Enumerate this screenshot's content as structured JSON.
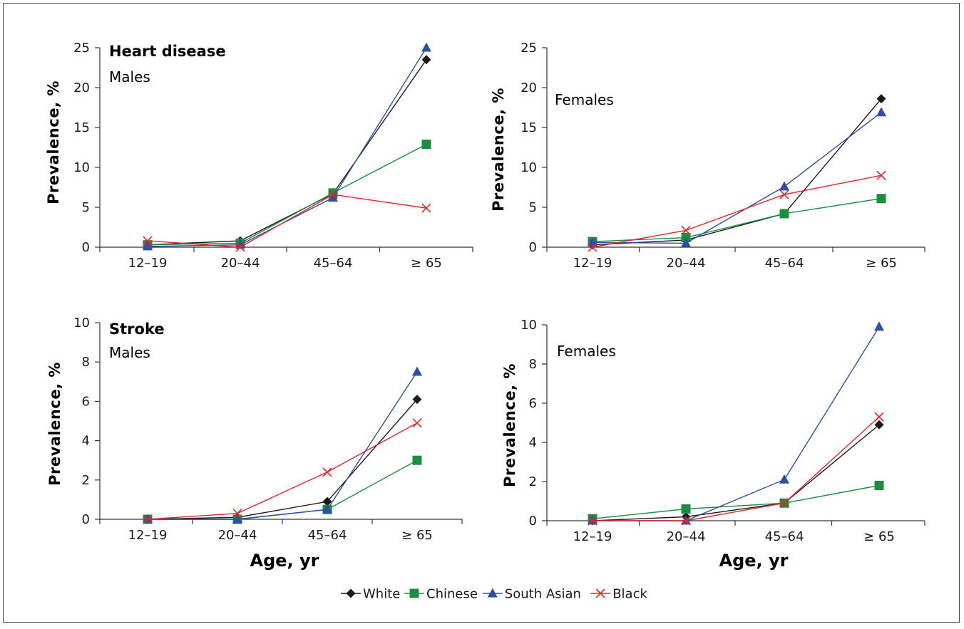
{
  "chart_data": [
    {
      "type": "line",
      "title": "Heart disease",
      "subtitle": "Males",
      "ylabel": "Prevalence, %",
      "xlabel": "",
      "categories": [
        "12–19",
        "20–44",
        "45–64",
        "≥ 65"
      ],
      "ylim": [
        0,
        25
      ],
      "yticks": [
        0,
        5,
        10,
        15,
        20,
        25
      ],
      "series": [
        {
          "name": "White",
          "values": [
            0.3,
            0.8,
            6.7,
            23.5
          ]
        },
        {
          "name": "Chinese",
          "values": [
            0.3,
            0.5,
            6.8,
            12.9
          ]
        },
        {
          "name": "South Asian",
          "values": [
            0.1,
            0.3,
            6.2,
            25.0
          ]
        },
        {
          "name": "Black",
          "values": [
            0.8,
            0.0,
            6.6,
            4.9
          ]
        }
      ]
    },
    {
      "type": "line",
      "title": "",
      "subtitle": "Females",
      "ylabel": "Prevalence, %",
      "xlabel": "",
      "categories": [
        "12–19",
        "20–44",
        "45–64",
        "≥ 65"
      ],
      "ylim": [
        0,
        25
      ],
      "yticks": [
        0,
        5,
        10,
        15,
        20,
        25
      ],
      "series": [
        {
          "name": "White",
          "values": [
            0.3,
            0.9,
            4.2,
            18.6
          ]
        },
        {
          "name": "Chinese",
          "values": [
            0.7,
            1.2,
            4.2,
            6.1
          ]
        },
        {
          "name": "South Asian",
          "values": [
            0.6,
            0.5,
            7.6,
            16.9
          ]
        },
        {
          "name": "Black",
          "values": [
            0.0,
            2.1,
            6.6,
            9.0
          ]
        }
      ]
    },
    {
      "type": "line",
      "title": "Stroke",
      "subtitle": "Males",
      "ylabel": "Prevalence, %",
      "xlabel": "Age, yr",
      "categories": [
        "12–19",
        "20–44",
        "45–64",
        "≥ 65"
      ],
      "ylim": [
        0,
        10
      ],
      "yticks": [
        0,
        2,
        4,
        6,
        8,
        10
      ],
      "series": [
        {
          "name": "White",
          "values": [
            0.0,
            0.1,
            0.9,
            6.1
          ]
        },
        {
          "name": "Chinese",
          "values": [
            0.0,
            0.0,
            0.5,
            3.0
          ]
        },
        {
          "name": "South Asian",
          "values": [
            0.0,
            0.0,
            0.5,
            7.5
          ]
        },
        {
          "name": "Black",
          "values": [
            0.0,
            0.3,
            2.4,
            4.9
          ]
        }
      ]
    },
    {
      "type": "line",
      "title": "",
      "subtitle": "Females",
      "ylabel": "Prevalence, %",
      "xlabel": "Age, yr",
      "categories": [
        "12–19",
        "20–44",
        "45–64",
        "≥ 65"
      ],
      "ylim": [
        0,
        10
      ],
      "yticks": [
        0,
        2,
        4,
        6,
        8,
        10
      ],
      "series": [
        {
          "name": "White",
          "values": [
            0.0,
            0.2,
            0.9,
            4.9
          ]
        },
        {
          "name": "Chinese",
          "values": [
            0.1,
            0.6,
            0.9,
            1.8
          ]
        },
        {
          "name": "South Asian",
          "values": [
            0.0,
            0.0,
            2.1,
            9.9
          ]
        },
        {
          "name": "Black",
          "values": [
            0.0,
            0.0,
            0.9,
            5.3
          ]
        }
      ]
    }
  ],
  "legend": [
    {
      "name": "White",
      "color": "#1a1a1a",
      "marker": "diamond"
    },
    {
      "name": "Chinese",
      "color": "#1b8f3f",
      "marker": "square"
    },
    {
      "name": "South Asian",
      "color": "#2e4fa3",
      "marker": "triangle"
    },
    {
      "name": "Black",
      "color": "#e0262b",
      "marker": "cross"
    }
  ],
  "legend_position": "bottom-center",
  "grid": false
}
